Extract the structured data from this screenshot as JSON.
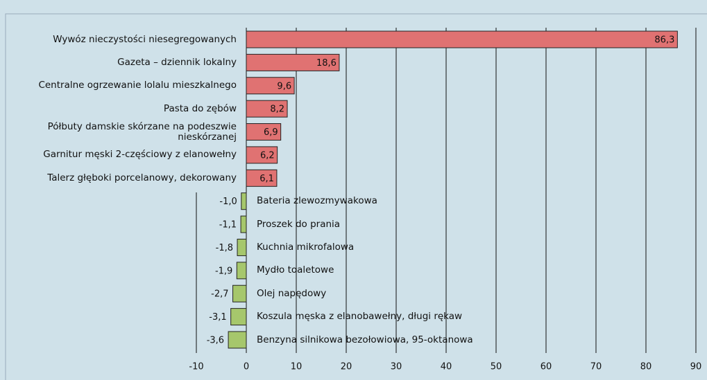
{
  "chart_data": {
    "type": "bar",
    "orientation": "horizontal",
    "categories": [
      "Wywóz nieczystości niesegregowanych",
      "Gazeta – dziennik lokalny",
      "Centralne ogrzewanie lolalu mieszkalnego",
      "Pasta do zębów",
      "Półbuty damskie skórzane na podeszwie nieskórzanej",
      "Garnitur męski 2-częściowy z elanowełny",
      "Talerz głęboki porcelanowy, dekorowany",
      "Bateria zlewozmywakowa",
      "Proszek do prania",
      "Kuchnia mikrofalowa",
      "Mydło toaletowe",
      "Olej napędowy",
      "Koszula męska z elanobawełny, długi rękaw",
      "Benzyna silnikowa bezołowiowa, 95-oktanowa"
    ],
    "values": [
      86.3,
      18.6,
      9.6,
      8.2,
      6.9,
      6.2,
      6.1,
      -1.0,
      -1.1,
      -1.8,
      -1.9,
      -2.7,
      -3.1,
      -3.6
    ],
    "value_labels": [
      "86,3",
      "18,6",
      "9,6",
      "8,2",
      "6,9",
      "6,2",
      "6,1",
      "-1,0",
      "-1,1",
      "-1,8",
      "-1,9",
      "-2,7",
      "-3,1",
      "-3,6"
    ],
    "color_positive": "#e07272",
    "color_negative": "#a6c76c",
    "xlim": [
      -10,
      90
    ],
    "xticks": [
      -10,
      0,
      10,
      20,
      30,
      40,
      50,
      60,
      70,
      80,
      90
    ],
    "grid": true
  }
}
